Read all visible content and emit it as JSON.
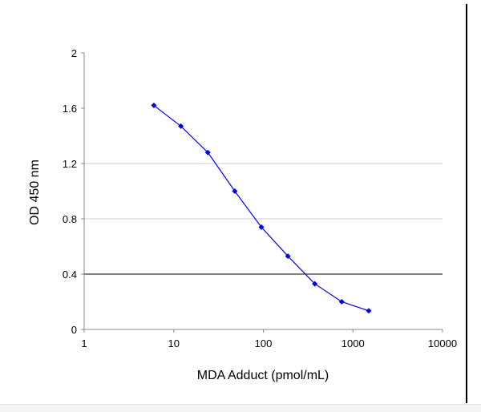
{
  "chart_data": {
    "type": "line",
    "title": "",
    "xlabel": "MDA Adduct (pmol/mL)",
    "ylabel": "OD 450 nm",
    "x_scale": "log",
    "xlim": [
      1,
      10000
    ],
    "ylim": [
      0,
      2
    ],
    "x_ticks": [
      "1",
      "10",
      "100",
      "1000",
      "10000"
    ],
    "y_ticks": [
      "0",
      "0.4",
      "0.8",
      "1.2",
      "1.6",
      "2"
    ],
    "gridlines_y": [
      0.4,
      0.8,
      1.2
    ],
    "grid": "horizontal",
    "legend": "none",
    "series": [
      {
        "color": "#0000ee",
        "marker": "diamond",
        "x": [
          6,
          12,
          24,
          48,
          95,
          188,
          375,
          750,
          1500
        ],
        "y": [
          1.62,
          1.47,
          1.28,
          1.0,
          0.74,
          0.53,
          0.33,
          0.2,
          0.135
        ]
      }
    ]
  }
}
